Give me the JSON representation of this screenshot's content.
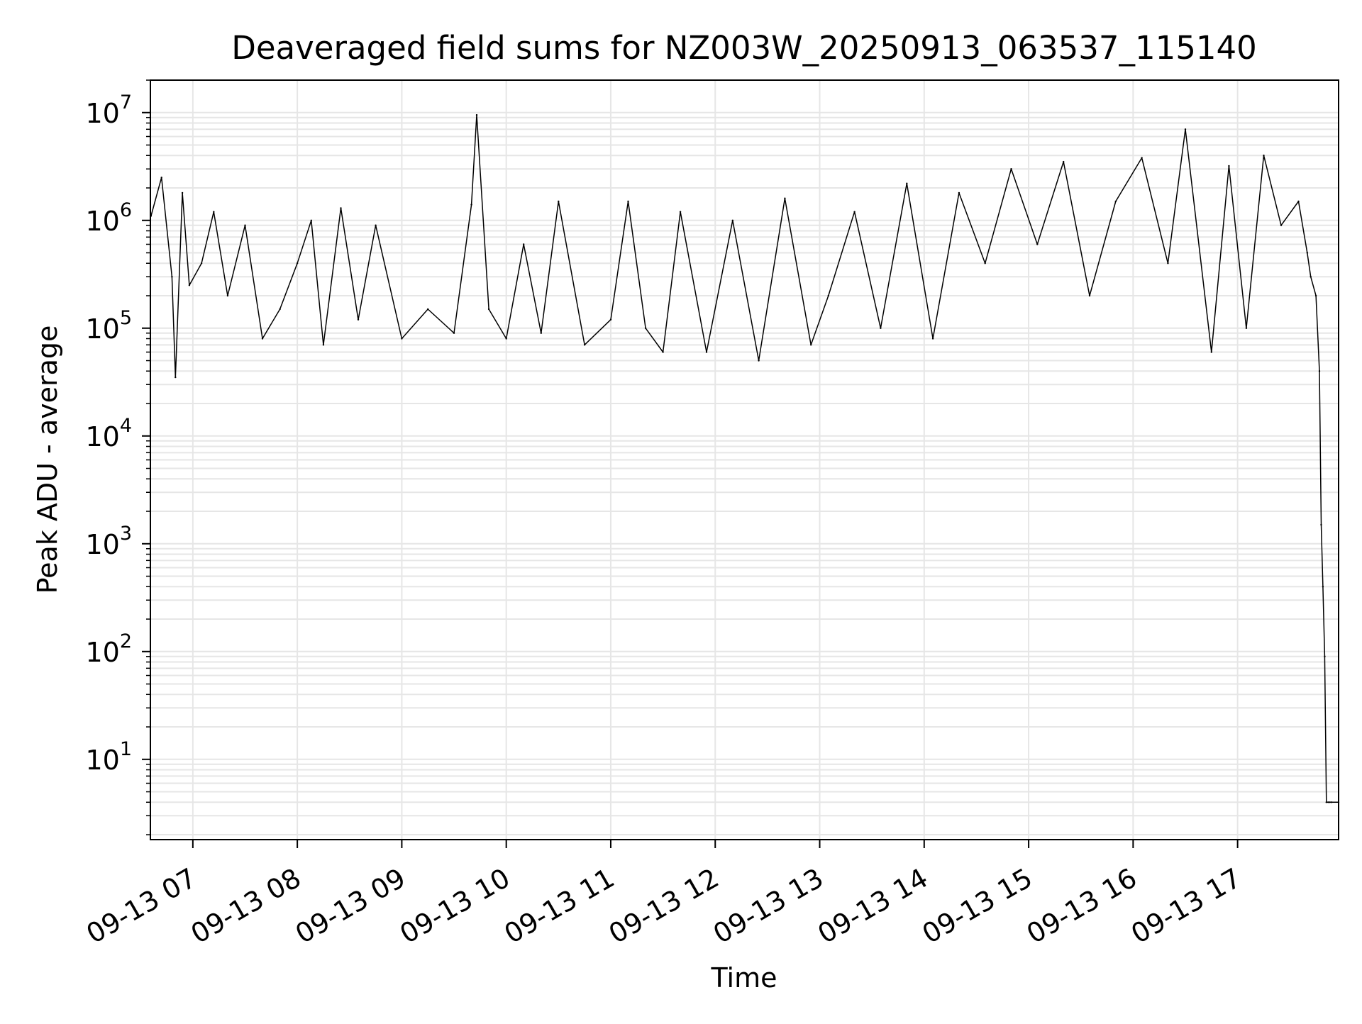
{
  "chart_data": {
    "type": "line",
    "title": "Deaveraged field sums for NZ003W_20250913_063537_115140",
    "xlabel": "Time",
    "ylabel": "Peak ADU - average",
    "y_scale": "log",
    "ylim": [
      1.8,
      20000000
    ],
    "y_ticks": [
      {
        "value": 10,
        "base": "10",
        "exp": "1"
      },
      {
        "value": 100,
        "base": "10",
        "exp": "2"
      },
      {
        "value": 1000,
        "base": "10",
        "exp": "3"
      },
      {
        "value": 10000,
        "base": "10",
        "exp": "4"
      },
      {
        "value": 100000,
        "base": "10",
        "exp": "5"
      },
      {
        "value": 1000000,
        "base": "10",
        "exp": "6"
      },
      {
        "value": 10000000,
        "base": "10",
        "exp": "7"
      }
    ],
    "x_axis_type": "datetime",
    "xlim": [
      "2025-09-13T06:35:37",
      "2025-09-13T17:58:00"
    ],
    "x_ticks": [
      {
        "value": "2025-09-13T07:00:00",
        "label": "09-13 07"
      },
      {
        "value": "2025-09-13T08:00:00",
        "label": "09-13 08"
      },
      {
        "value": "2025-09-13T09:00:00",
        "label": "09-13 09"
      },
      {
        "value": "2025-09-13T10:00:00",
        "label": "09-13 10"
      },
      {
        "value": "2025-09-13T11:00:00",
        "label": "09-13 11"
      },
      {
        "value": "2025-09-13T12:00:00",
        "label": "09-13 12"
      },
      {
        "value": "2025-09-13T13:00:00",
        "label": "09-13 13"
      },
      {
        "value": "2025-09-13T14:00:00",
        "label": "09-13 14"
      },
      {
        "value": "2025-09-13T15:00:00",
        "label": "09-13 15"
      },
      {
        "value": "2025-09-13T16:00:00",
        "label": "09-13 16"
      },
      {
        "value": "2025-09-13T17:00:00",
        "label": "09-13 17"
      }
    ],
    "grid": true,
    "line_color": "#000000",
    "grid_color": "#e6e6e6",
    "x": [
      "2025-09-13T06:36:00",
      "2025-09-13T06:42:00",
      "2025-09-13T06:48:00",
      "2025-09-13T06:50:00",
      "2025-09-13T06:54:00",
      "2025-09-13T06:58:00",
      "2025-09-13T07:05:00",
      "2025-09-13T07:12:00",
      "2025-09-13T07:20:00",
      "2025-09-13T07:30:00",
      "2025-09-13T07:40:00",
      "2025-09-13T07:50:00",
      "2025-09-13T08:00:00",
      "2025-09-13T08:08:00",
      "2025-09-13T08:15:00",
      "2025-09-13T08:25:00",
      "2025-09-13T08:35:00",
      "2025-09-13T08:45:00",
      "2025-09-13T09:00:00",
      "2025-09-13T09:15:00",
      "2025-09-13T09:30:00",
      "2025-09-13T09:40:00",
      "2025-09-13T09:43:00",
      "2025-09-13T09:50:00",
      "2025-09-13T10:00:00",
      "2025-09-13T10:10:00",
      "2025-09-13T10:20:00",
      "2025-09-13T10:30:00",
      "2025-09-13T10:45:00",
      "2025-09-13T11:00:00",
      "2025-09-13T11:10:00",
      "2025-09-13T11:20:00",
      "2025-09-13T11:30:00",
      "2025-09-13T11:40:00",
      "2025-09-13T11:55:00",
      "2025-09-13T12:10:00",
      "2025-09-13T12:25:00",
      "2025-09-13T12:40:00",
      "2025-09-13T12:55:00",
      "2025-09-13T13:05:00",
      "2025-09-13T13:20:00",
      "2025-09-13T13:35:00",
      "2025-09-13T13:50:00",
      "2025-09-13T14:05:00",
      "2025-09-13T14:20:00",
      "2025-09-13T14:35:00",
      "2025-09-13T14:50:00",
      "2025-09-13T15:05:00",
      "2025-09-13T15:20:00",
      "2025-09-13T15:35:00",
      "2025-09-13T15:50:00",
      "2025-09-13T16:05:00",
      "2025-09-13T16:20:00",
      "2025-09-13T16:30:00",
      "2025-09-13T16:45:00",
      "2025-09-13T16:55:00",
      "2025-09-13T17:05:00",
      "2025-09-13T17:15:00",
      "2025-09-13T17:25:00",
      "2025-09-13T17:35:00",
      "2025-09-13T17:40:00",
      "2025-09-13T17:42:00",
      "2025-09-13T17:45:00",
      "2025-09-13T17:47:00",
      "2025-09-13T17:48:00",
      "2025-09-13T17:49:00",
      "2025-09-13T17:50:00",
      "2025-09-13T17:51:00",
      "2025-09-13T17:52:00",
      "2025-09-13T17:53:00",
      "2025-09-13T17:54:00",
      "2025-09-13T17:58:00"
    ],
    "values": [
      1100000,
      2500000,
      300000,
      35000,
      1800000,
      250000,
      400000,
      1200000,
      200000,
      900000,
      80000,
      150000,
      400000,
      1000000,
      70000,
      1300000,
      120000,
      900000,
      80000,
      150000,
      90000,
      1400000,
      9500000,
      150000,
      80000,
      600000,
      90000,
      1500000,
      70000,
      120000,
      1500000,
      100000,
      60000,
      1200000,
      60000,
      1000000,
      50000,
      1600000,
      70000,
      200000,
      1200000,
      100000,
      2200000,
      80000,
      1800000,
      400000,
      3000000,
      600000,
      3500000,
      200000,
      1500000,
      3800000,
      400000,
      7000000,
      60000,
      3200000,
      100000,
      4000000,
      900000,
      1500000,
      500000,
      300000,
      200000,
      40000,
      1500,
      400,
      90,
      4,
      4,
      4,
      4,
      4
    ]
  }
}
